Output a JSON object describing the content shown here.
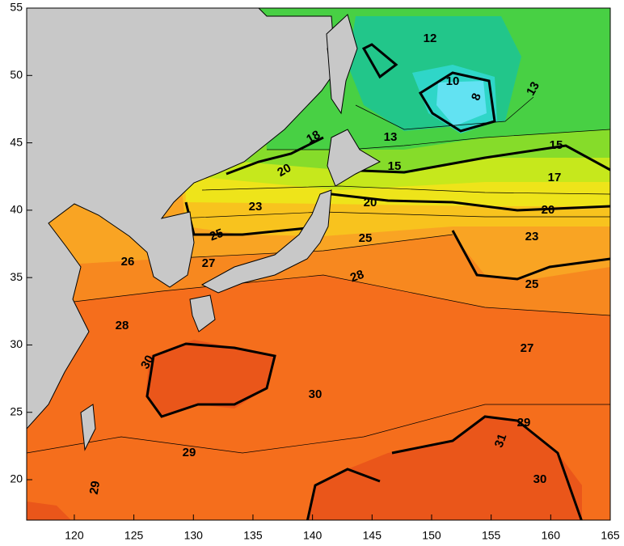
{
  "map": {
    "xlim": [
      116,
      165
    ],
    "ylim": [
      17,
      55
    ],
    "xticks": [
      120,
      125,
      130,
      135,
      140,
      145,
      150,
      155,
      160,
      165
    ],
    "yticks": [
      20,
      25,
      30,
      35,
      40,
      45,
      50,
      55
    ],
    "contour_labels": [
      12,
      10,
      8,
      13,
      13,
      18,
      15,
      15,
      20,
      17,
      23,
      20,
      20,
      25,
      25,
      23,
      26,
      27,
      28,
      25,
      28,
      27,
      30,
      30,
      29,
      31,
      29,
      30,
      29
    ]
  }
}
